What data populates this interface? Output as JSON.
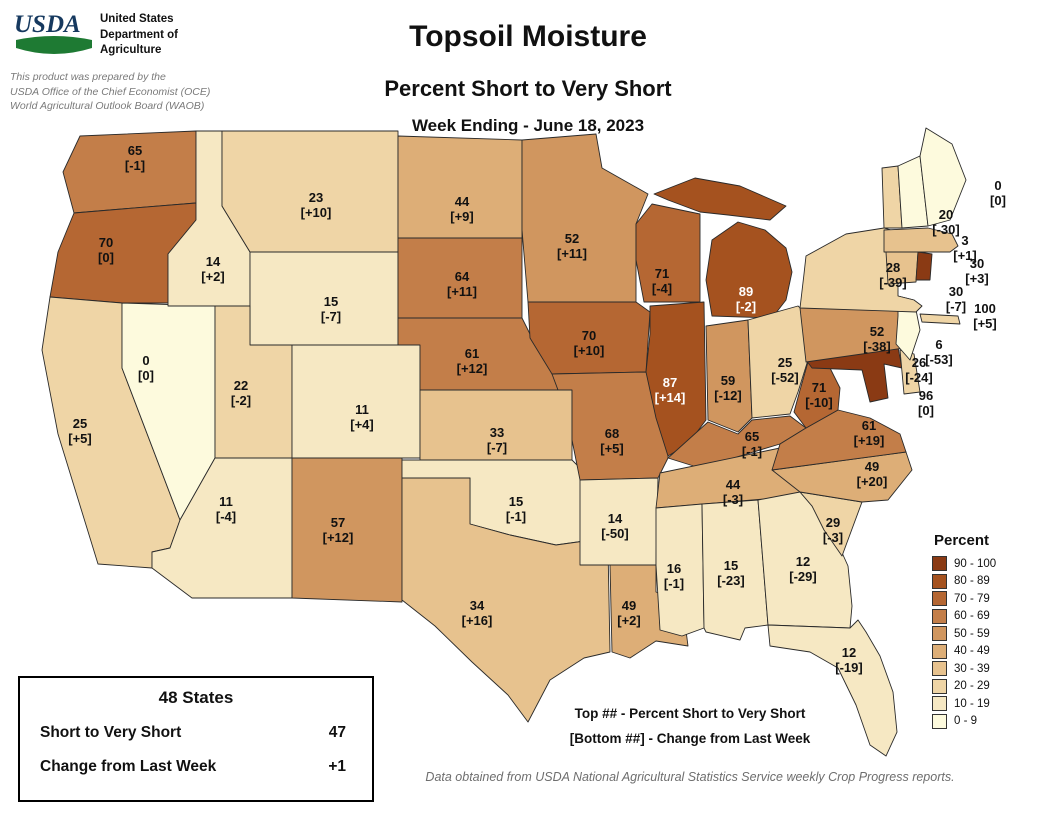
{
  "header": {
    "logo_text": "USDA",
    "agency": "United States\nDepartment of\nAgriculture",
    "prepared_by": "This product was prepared by the\nUSDA Office of the Chief Economist (OCE)\nWorld Agricultural Outlook Board (WAOB)",
    "title": "Topsoil Moisture",
    "subtitle": "Percent Short to Very Short",
    "week_ending": "Week Ending - June 18, 2023"
  },
  "legend": {
    "title": "Percent",
    "bins": [
      {
        "label": "90 - 100",
        "min": 90,
        "max": 100,
        "color": "#8a3a14"
      },
      {
        "label": "80 - 89",
        "min": 80,
        "max": 89,
        "color": "#a5521f"
      },
      {
        "label": "70 - 79",
        "min": 70,
        "max": 79,
        "color": "#b56733"
      },
      {
        "label": "60 - 69",
        "min": 60,
        "max": 69,
        "color": "#c37e49"
      },
      {
        "label": "50 - 59",
        "min": 50,
        "max": 59,
        "color": "#d0965f"
      },
      {
        "label": "40 - 49",
        "min": 40,
        "max": 49,
        "color": "#ddae77"
      },
      {
        "label": "30 - 39",
        "min": 30,
        "max": 39,
        "color": "#e7c28e"
      },
      {
        "label": "20 - 29",
        "min": 20,
        "max": 29,
        "color": "#efd5a6"
      },
      {
        "label": "10 - 19",
        "min": 10,
        "max": 19,
        "color": "#f6e8c3"
      },
      {
        "label": "0 - 9",
        "min": 0,
        "max": 9,
        "color": "#fdfadd"
      }
    ]
  },
  "summary_box": {
    "title": "48 States",
    "rows": [
      {
        "label": "Short to Very Short",
        "value": "47"
      },
      {
        "label": "Change from Last Week",
        "value": "+1"
      }
    ]
  },
  "notes": {
    "top_note": "Top ## - Percent Short to Very Short",
    "bottom_note": "[Bottom ##] - Change from Last Week",
    "source": "Data obtained from USDA National Agricultural Statistics Service weekly Crop Progress reports."
  },
  "chart_data": {
    "type": "choropleth",
    "title": "Topsoil Moisture - Percent Short to Very Short",
    "week_ending": "June 18, 2023",
    "value_meaning": "Percent Short to Very Short",
    "change_meaning": "Change from Last Week",
    "states": [
      {
        "abbr": "WA",
        "name": "Washington",
        "value": 65,
        "change": -1
      },
      {
        "abbr": "OR",
        "name": "Oregon",
        "value": 70,
        "change": 0
      },
      {
        "abbr": "CA",
        "name": "California",
        "value": 25,
        "change": 5
      },
      {
        "abbr": "NV",
        "name": "Nevada",
        "value": 0,
        "change": 0
      },
      {
        "abbr": "ID",
        "name": "Idaho",
        "value": 14,
        "change": 2
      },
      {
        "abbr": "MT",
        "name": "Montana",
        "value": 23,
        "change": 10
      },
      {
        "abbr": "WY",
        "name": "Wyoming",
        "value": 15,
        "change": -7
      },
      {
        "abbr": "UT",
        "name": "Utah",
        "value": 22,
        "change": -2
      },
      {
        "abbr": "CO",
        "name": "Colorado",
        "value": 11,
        "change": 4
      },
      {
        "abbr": "AZ",
        "name": "Arizona",
        "value": 11,
        "change": -4
      },
      {
        "abbr": "NM",
        "name": "New Mexico",
        "value": 57,
        "change": 12
      },
      {
        "abbr": "ND",
        "name": "North Dakota",
        "value": 44,
        "change": 9
      },
      {
        "abbr": "SD",
        "name": "South Dakota",
        "value": 64,
        "change": 11
      },
      {
        "abbr": "NE",
        "name": "Nebraska",
        "value": 61,
        "change": 12
      },
      {
        "abbr": "KS",
        "name": "Kansas",
        "value": 33,
        "change": -7
      },
      {
        "abbr": "OK",
        "name": "Oklahoma",
        "value": 15,
        "change": -1
      },
      {
        "abbr": "TX",
        "name": "Texas",
        "value": 34,
        "change": 16
      },
      {
        "abbr": "MN",
        "name": "Minnesota",
        "value": 52,
        "change": 11
      },
      {
        "abbr": "IA",
        "name": "Iowa",
        "value": 70,
        "change": 10
      },
      {
        "abbr": "MO",
        "name": "Missouri",
        "value": 68,
        "change": 5
      },
      {
        "abbr": "AR",
        "name": "Arkansas",
        "value": 14,
        "change": -50
      },
      {
        "abbr": "LA",
        "name": "Louisiana",
        "value": 49,
        "change": 2
      },
      {
        "abbr": "WI",
        "name": "Wisconsin",
        "value": 71,
        "change": -4
      },
      {
        "abbr": "IL",
        "name": "Illinois",
        "value": 87,
        "change": 14
      },
      {
        "abbr": "MI",
        "name": "Michigan",
        "value": 89,
        "change": -2
      },
      {
        "abbr": "IN",
        "name": "Indiana",
        "value": 59,
        "change": -12
      },
      {
        "abbr": "OH",
        "name": "Ohio",
        "value": 25,
        "change": -52
      },
      {
        "abbr": "KY",
        "name": "Kentucky",
        "value": 65,
        "change": -1
      },
      {
        "abbr": "TN",
        "name": "Tennessee",
        "value": 44,
        "change": -3
      },
      {
        "abbr": "MS",
        "name": "Mississippi",
        "value": 16,
        "change": -1
      },
      {
        "abbr": "AL",
        "name": "Alabama",
        "value": 15,
        "change": -23
      },
      {
        "abbr": "GA",
        "name": "Georgia",
        "value": 12,
        "change": -29
      },
      {
        "abbr": "FL",
        "name": "Florida",
        "value": 12,
        "change": -19
      },
      {
        "abbr": "SC",
        "name": "South Carolina",
        "value": 29,
        "change": -3
      },
      {
        "abbr": "NC",
        "name": "North Carolina",
        "value": 49,
        "change": 20
      },
      {
        "abbr": "VA",
        "name": "Virginia",
        "value": 61,
        "change": 19
      },
      {
        "abbr": "WV",
        "name": "West Virginia",
        "value": 71,
        "change": -10
      },
      {
        "abbr": "MD",
        "name": "Maryland",
        "value": 96,
        "change": 0
      },
      {
        "abbr": "DE",
        "name": "Delaware",
        "value": 26,
        "change": -24
      },
      {
        "abbr": "PA",
        "name": "Pennsylvania",
        "value": 52,
        "change": -38
      },
      {
        "abbr": "NJ",
        "name": "New Jersey",
        "value": 6,
        "change": -53
      },
      {
        "abbr": "NY",
        "name": "New York",
        "value": 28,
        "change": -39
      },
      {
        "abbr": "CT",
        "name": "Connecticut",
        "value": 30,
        "change": -7
      },
      {
        "abbr": "RI",
        "name": "Rhode Island",
        "value": 100,
        "change": 5
      },
      {
        "abbr": "MA",
        "name": "Massachusetts",
        "value": 30,
        "change": 3
      },
      {
        "abbr": "VT",
        "name": "Vermont",
        "value": 20,
        "change": -30
      },
      {
        "abbr": "NH",
        "name": "New Hampshire",
        "value": 3,
        "change": 1
      },
      {
        "abbr": "ME",
        "name": "Maine",
        "value": 0,
        "change": 0
      }
    ]
  }
}
